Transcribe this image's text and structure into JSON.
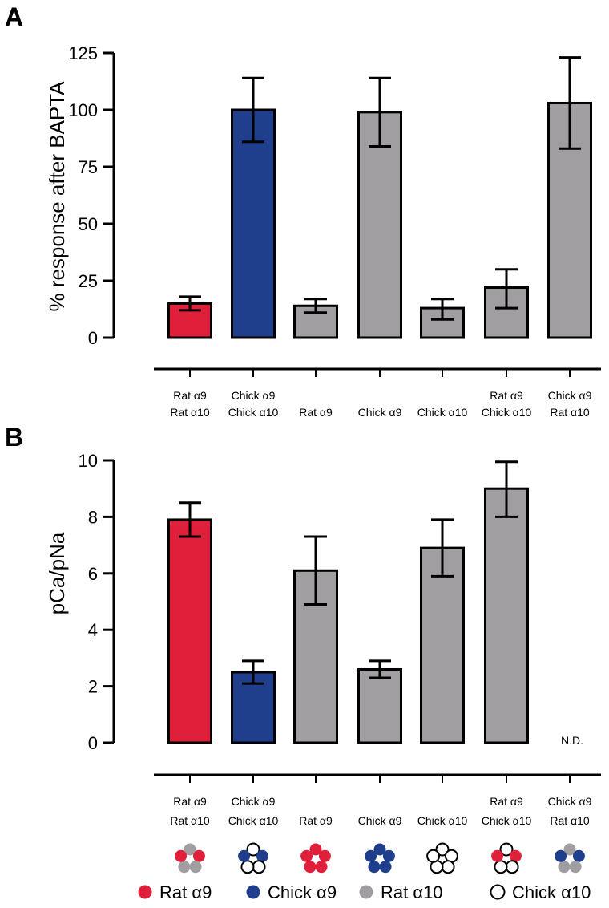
{
  "panels": [
    {
      "letter": "A",
      "ylabel": "% response after BAPTA",
      "ticks": [
        "0",
        "25",
        "50",
        "75",
        "100",
        "125"
      ]
    },
    {
      "letter": "B",
      "ylabel": "pCa/pNa",
      "ticks": [
        "0",
        "2",
        "4",
        "6",
        "8",
        "10"
      ]
    }
  ],
  "categories": [
    [
      "Rat α9",
      "Rat α10"
    ],
    [
      "Chick α9",
      "Chick α10"
    ],
    [
      "",
      "Rat α9"
    ],
    [
      "",
      "Chick α9"
    ],
    [
      "",
      "Chick α10"
    ],
    [
      "Rat α9",
      "Chick α10"
    ],
    [
      "Chick α9",
      "Rat α10"
    ]
  ],
  "nd_label": "N.D.",
  "colors": {
    "rat_a9": "#e0203a",
    "chick_a9": "#1f3f8c",
    "rat_a10": "#a09ea0",
    "chick_a10": "#ffffff",
    "gray_bar": "#a09ea0"
  },
  "chart_data": [
    {
      "type": "bar",
      "categories": [
        "Rat α9 / Rat α10",
        "Chick α9 / Chick α10",
        "Rat α9",
        "Chick α9",
        "Chick α10",
        "Rat α9 / Chick α10",
        "Chick α9 / Rat α10"
      ],
      "values": [
        15,
        100,
        14,
        99,
        13,
        22,
        103
      ],
      "err_low": [
        12,
        86,
        11,
        84,
        8,
        13,
        83
      ],
      "err_high": [
        18,
        114,
        17,
        114,
        17,
        30,
        123
      ],
      "bar_colors": [
        "rat_a9",
        "chick_a9",
        "gray_bar",
        "gray_bar",
        "gray_bar",
        "gray_bar",
        "gray_bar"
      ],
      "ylabel": "% response after BAPTA",
      "ylim": [
        0,
        125
      ],
      "grid": false
    },
    {
      "type": "bar",
      "categories": [
        "Rat α9 / Rat α10",
        "Chick α9 / Chick α10",
        "Rat α9",
        "Chick α9",
        "Chick α10",
        "Rat α9 / Chick α10",
        "Chick α9 / Rat α10"
      ],
      "values": [
        7.9,
        2.5,
        6.1,
        2.6,
        6.9,
        9.0,
        null
      ],
      "err_low": [
        7.3,
        2.1,
        4.9,
        2.3,
        5.9,
        8.0,
        null
      ],
      "err_high": [
        8.5,
        2.9,
        7.3,
        2.9,
        7.9,
        9.95,
        null
      ],
      "bar_colors": [
        "rat_a9",
        "chick_a9",
        "gray_bar",
        "gray_bar",
        "gray_bar",
        "gray_bar",
        "gray_bar"
      ],
      "ylabel": "pCa/pNa",
      "ylim": [
        0,
        10
      ],
      "grid": false
    }
  ],
  "pentamers": [
    [
      "rat_a10",
      "rat_a9",
      "rat_a10",
      "rat_a10",
      "rat_a9"
    ],
    [
      "chick_a10",
      "chick_a9",
      "chick_a10",
      "chick_a10",
      "chick_a9"
    ],
    [
      "rat_a9",
      "rat_a9",
      "rat_a9",
      "rat_a9",
      "rat_a9"
    ],
    [
      "chick_a9",
      "chick_a9",
      "chick_a9",
      "chick_a9",
      "chick_a9"
    ],
    [
      "chick_a10",
      "chick_a10",
      "chick_a10",
      "chick_a10",
      "chick_a10"
    ],
    [
      "chick_a10",
      "rat_a9",
      "chick_a10",
      "chick_a10",
      "rat_a9"
    ],
    [
      "rat_a10",
      "chick_a9",
      "rat_a10",
      "rat_a10",
      "chick_a9"
    ]
  ],
  "legend": [
    {
      "key": "rat_a9",
      "label": "Rat α9"
    },
    {
      "key": "chick_a9",
      "label": "Chick α9"
    },
    {
      "key": "rat_a10",
      "label": "Rat α10"
    },
    {
      "key": "chick_a10",
      "label": "Chick α10"
    }
  ]
}
